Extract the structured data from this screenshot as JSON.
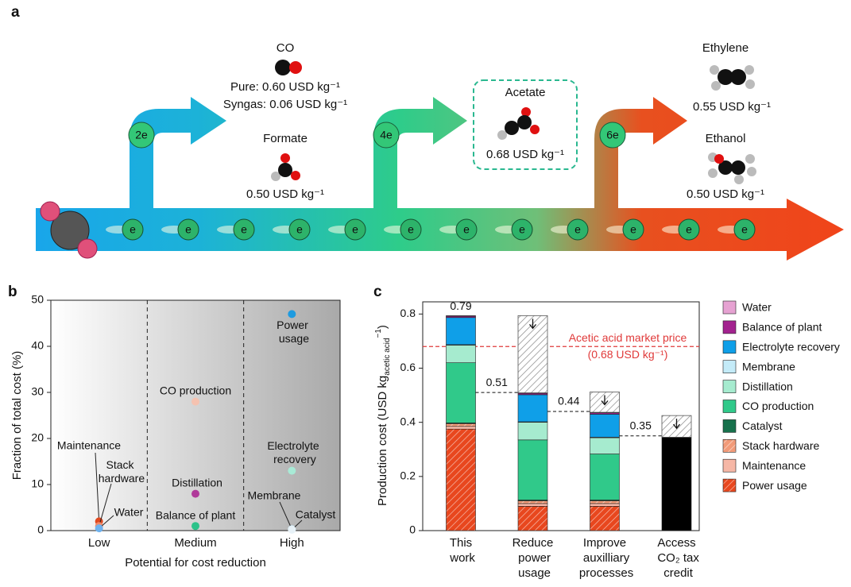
{
  "panel_a": {
    "label": "a",
    "steps": [
      "2e",
      "4e",
      "6e"
    ],
    "electron": "e",
    "products": [
      {
        "name": "CO",
        "prices": [
          "Pure: 0.60 USD kg⁻¹",
          "Syngas: 0.06 USD kg⁻¹"
        ]
      },
      {
        "name": "Formate",
        "prices": [
          "0.50 USD kg⁻¹"
        ]
      },
      {
        "name": "Acetate",
        "prices": [
          "0.68 USD kg⁻¹"
        ]
      },
      {
        "name": "Ethylene",
        "prices": [
          "0.55 USD kg⁻¹"
        ]
      },
      {
        "name": "Ethanol",
        "prices": [
          "0.50 USD kg⁻¹"
        ]
      }
    ]
  },
  "chart_data": [
    {
      "type": "scatter",
      "panel_label": "b",
      "xlabel": "Potential for cost reduction",
      "ylabel": "Fraction of total cost (%)",
      "categories": [
        "Low",
        "Medium",
        "High"
      ],
      "ylim": [
        0,
        50
      ],
      "yticks": [
        0,
        10,
        20,
        30,
        40,
        50
      ],
      "series": [
        {
          "name": "Maintenance",
          "color": "#e0491f",
          "values": [
            2,
            null,
            null
          ]
        },
        {
          "name": "Stack hardware",
          "color": "#f08a6a",
          "values": [
            1,
            null,
            null
          ]
        },
        {
          "name": "Water",
          "color": "#6fb2ee",
          "values": [
            0.5,
            null,
            null
          ]
        },
        {
          "name": "Balance of plant",
          "color": "#2cc28a",
          "values": [
            null,
            1,
            null
          ]
        },
        {
          "name": "Distillation",
          "color": "#b03a9a",
          "values": [
            null,
            8,
            null
          ]
        },
        {
          "name": "CO production",
          "color": "#f5c2b0",
          "values": [
            null,
            28,
            null
          ]
        },
        {
          "name": "Power usage",
          "color": "#1e9be0",
          "values": [
            null,
            null,
            47
          ]
        },
        {
          "name": "Electrolyte recovery",
          "color": "#a8ead6",
          "values": [
            null,
            null,
            13
          ]
        },
        {
          "name": "Membrane",
          "color": "#cbe9f7",
          "values": [
            null,
            null,
            0.3
          ]
        },
        {
          "name": "Catalyst",
          "color": "#e8f2f8",
          "values": [
            null,
            null,
            0.2
          ]
        }
      ]
    },
    {
      "type": "bar",
      "panel_label": "c",
      "ylabel": [
        "Production cost (USD kg",
        "acetic acid",
        "−1",
        ")"
      ],
      "categories": [
        "This work",
        "Reduce power usage",
        "Improve auxilliary processes",
        "Access CO₂ tax credit"
      ],
      "ylim": [
        0,
        0.845
      ],
      "yticks": [
        0,
        0.2,
        0.4,
        0.6,
        0.8
      ],
      "series": [
        {
          "name": "Power usage",
          "color": "#e8471e",
          "hatch": true,
          "values": [
            0.375,
            0.09,
            0.09,
            null
          ]
        },
        {
          "name": "Maintenance",
          "color": "#f6b7a6",
          "values": [
            0.01,
            0.01,
            0.01,
            null
          ]
        },
        {
          "name": "Stack hardware",
          "color": "#f29a78",
          "hatch": true,
          "values": [
            0.01,
            0.01,
            0.01,
            null
          ]
        },
        {
          "name": "Catalyst",
          "color": "#17714c",
          "values": [
            0.003,
            0.003,
            0.003,
            null
          ]
        },
        {
          "name": "CO production",
          "color": "#30c98a",
          "values": [
            0.222,
            0.222,
            0.17,
            null
          ]
        },
        {
          "name": "Distillation",
          "color": "#a6ebcf",
          "values": [
            0.065,
            0.065,
            0.06,
            null
          ]
        },
        {
          "name": "Membrane",
          "color": "#c4ebf8",
          "values": [
            0.002,
            0.002,
            0.002,
            null
          ]
        },
        {
          "name": "Electrolyte recovery",
          "color": "#0f9fe8",
          "values": [
            0.1,
            0.1,
            0.085,
            null
          ]
        },
        {
          "name": "Balance of plant",
          "color": "#a3238f",
          "values": [
            0.005,
            0.005,
            0.005,
            null
          ]
        },
        {
          "name": "Water",
          "color": "#e6a2d2",
          "values": [
            0.002,
            0.002,
            0.002,
            null
          ]
        },
        {
          "color": "#000000",
          "values": [
            null,
            null,
            null,
            0.345
          ]
        }
      ],
      "reduction": {
        "color": "#8a8a8a",
        "values": [
          null,
          0.285,
          0.075,
          0.08
        ]
      },
      "totals": [
        0.79,
        0.51,
        0.44,
        0.35
      ],
      "market_price": {
        "value": 0.68,
        "labels": [
          "Acetic acid market price",
          "(0.68 USD kg⁻¹)"
        ],
        "color": "#e03a3a"
      }
    }
  ]
}
